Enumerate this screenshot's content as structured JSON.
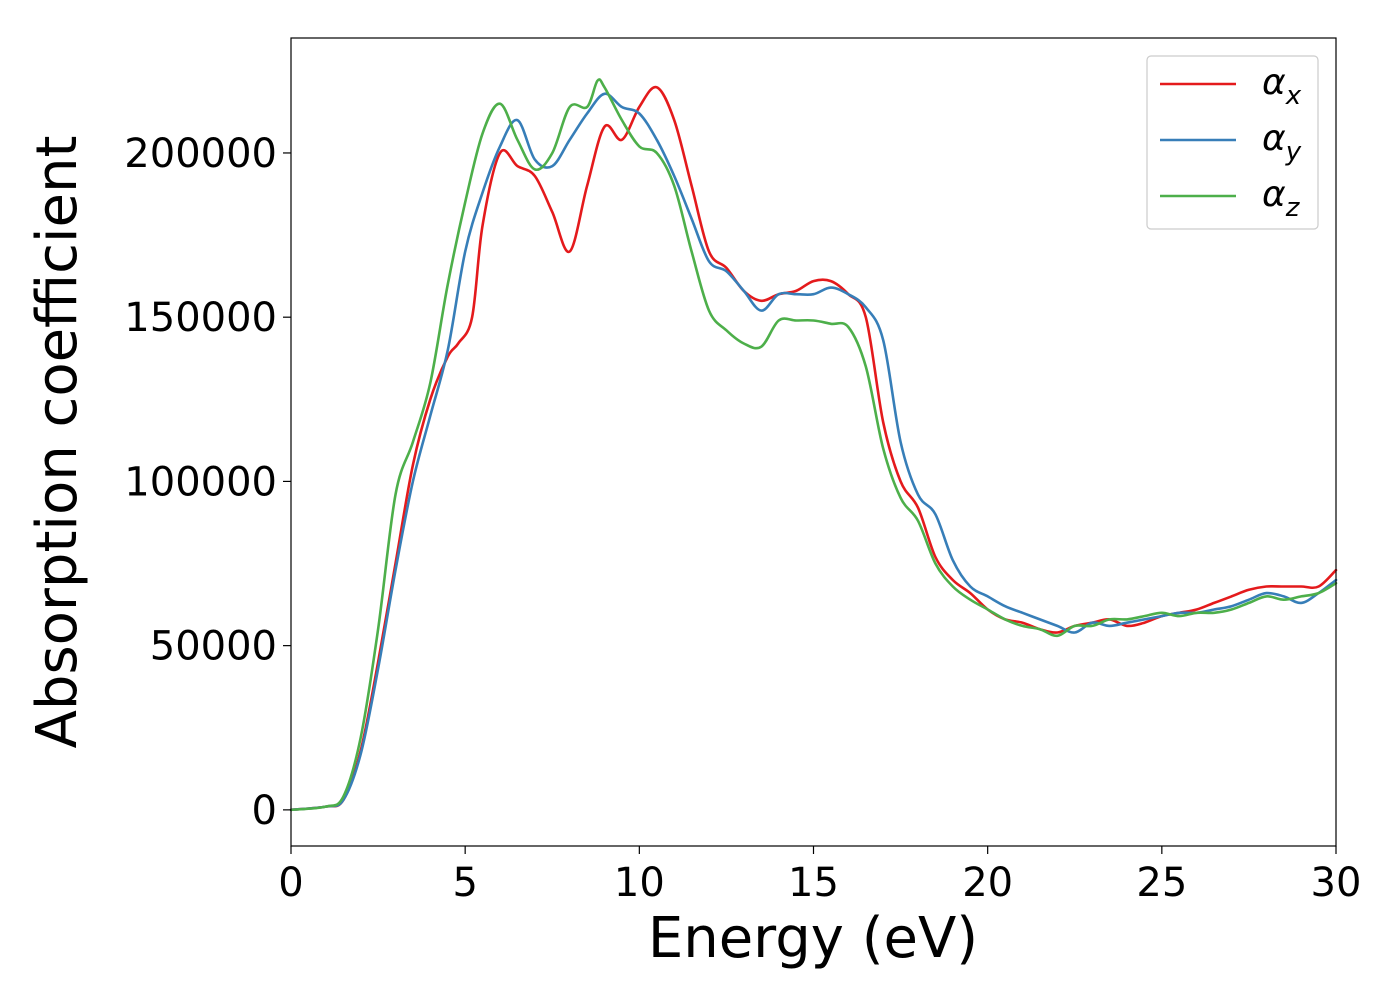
{
  "chart_data": {
    "type": "line",
    "xlabel": "Energy (eV)",
    "ylabel": "Absorption coefficient",
    "xlim": [
      0,
      30
    ],
    "ylim": [
      -11000,
      235000
    ],
    "xticks": [
      "0",
      "5",
      "10",
      "15",
      "20",
      "25",
      "30"
    ],
    "yticks": [
      "0",
      "50000",
      "100000",
      "150000",
      "200000"
    ],
    "grid": false,
    "legend_position": "top-right",
    "series": [
      {
        "name": "α",
        "subscript": "x",
        "color": "#e41a1c",
        "x": [
          0,
          1,
          1.5,
          2,
          2.5,
          3,
          3.5,
          4,
          4.5,
          4.8,
          5.2,
          5.5,
          6,
          6.5,
          7,
          7.5,
          8,
          8.5,
          9,
          9.5,
          10,
          10.5,
          11,
          11.5,
          12,
          12.5,
          13,
          13.5,
          14,
          14.5,
          15,
          15.5,
          16,
          16.5,
          17,
          17.5,
          18,
          18.5,
          19,
          19.5,
          20,
          20.5,
          21,
          21.5,
          22,
          22.5,
          23,
          23.5,
          24,
          24.5,
          25,
          25.5,
          26,
          26.5,
          27,
          27.5,
          28,
          28.5,
          29,
          29.5,
          30
        ],
        "y": [
          0,
          1000,
          3000,
          18000,
          45000,
          75000,
          105000,
          125000,
          138000,
          142000,
          150000,
          178000,
          200000,
          196000,
          193000,
          182000,
          170000,
          190000,
          208000,
          204000,
          214000,
          220000,
          210000,
          190000,
          170000,
          165000,
          158000,
          155000,
          157000,
          158000,
          161000,
          161000,
          157000,
          150000,
          118000,
          100000,
          92000,
          77000,
          70000,
          66000,
          61000,
          58000,
          57000,
          55000,
          54000,
          56000,
          57000,
          58000,
          56000,
          57000,
          59000,
          60000,
          61000,
          63000,
          65000,
          67000,
          68000,
          68000,
          68000,
          68000,
          73000
        ]
      },
      {
        "name": "α",
        "subscript": "y",
        "color": "#377eb8",
        "x": [
          0,
          1,
          1.5,
          2,
          2.5,
          3,
          3.5,
          4,
          4.5,
          5,
          5.5,
          6,
          6.5,
          7,
          7.5,
          8,
          8.5,
          9,
          9.5,
          10,
          10.5,
          11,
          11.5,
          12,
          12.5,
          13,
          13.5,
          14,
          14.5,
          15,
          15.5,
          16,
          16.5,
          17,
          17.5,
          18,
          18.5,
          19,
          19.5,
          20,
          20.5,
          21,
          21.5,
          22,
          22.5,
          23,
          23.5,
          24,
          24.5,
          25,
          25.5,
          26,
          26.5,
          27,
          27.5,
          28,
          28.5,
          29,
          29.5,
          30
        ],
        "y": [
          0,
          1000,
          3000,
          17000,
          43000,
          73000,
          100000,
          120000,
          140000,
          170000,
          188000,
          202000,
          210000,
          198000,
          196000,
          204000,
          212000,
          218000,
          214000,
          212000,
          204000,
          193000,
          180000,
          167000,
          164000,
          158000,
          152000,
          157000,
          157000,
          157000,
          159000,
          157000,
          153000,
          143000,
          112000,
          96000,
          90000,
          76000,
          68000,
          65000,
          62000,
          60000,
          58000,
          56000,
          54000,
          57000,
          56000,
          57000,
          58000,
          59000,
          60000,
          60000,
          61000,
          62000,
          64000,
          66000,
          65000,
          63000,
          66000,
          70000
        ]
      },
      {
        "name": "α",
        "subscript": "z",
        "color": "#4daf4a",
        "x": [
          0,
          1,
          1.5,
          2,
          2.5,
          3,
          3.5,
          4,
          4.5,
          5,
          5.5,
          6,
          6.5,
          7,
          7.5,
          8,
          8.5,
          8.8,
          9,
          9.5,
          10,
          10.5,
          11,
          11.5,
          12,
          12.5,
          13,
          13.5,
          14,
          14.5,
          15,
          15.5,
          16,
          16.5,
          17,
          17.5,
          18,
          18.5,
          19,
          19.5,
          20,
          20.5,
          21,
          21.5,
          22,
          22.5,
          23,
          23.5,
          24,
          24.5,
          25,
          25.5,
          26,
          26.5,
          27,
          27.5,
          28,
          28.5,
          29,
          29.5,
          30
        ],
        "y": [
          0,
          1000,
          4000,
          22000,
          55000,
          96000,
          112000,
          130000,
          160000,
          185000,
          206000,
          215000,
          204000,
          195000,
          200000,
          214000,
          214000,
          222000,
          220000,
          210000,
          202000,
          200000,
          190000,
          170000,
          152000,
          146000,
          142000,
          141000,
          149000,
          149000,
          149000,
          148000,
          147000,
          135000,
          110000,
          95000,
          88000,
          75000,
          68000,
          64000,
          61000,
          58000,
          56000,
          55000,
          53000,
          56000,
          56000,
          58000,
          58000,
          59000,
          60000,
          59000,
          60000,
          60000,
          61000,
          63000,
          65000,
          64000,
          65000,
          66000,
          69000
        ]
      }
    ]
  }
}
